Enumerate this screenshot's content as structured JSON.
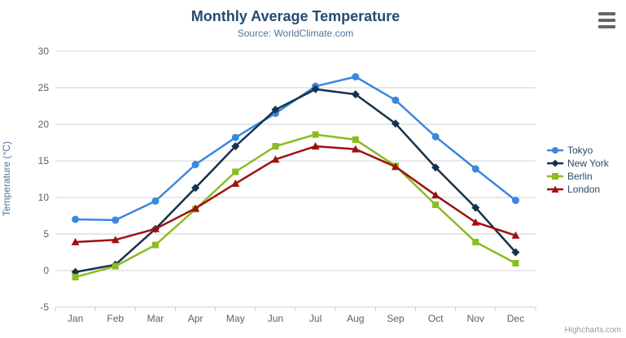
{
  "header": {
    "title": "Monthly Average Temperature",
    "subtitle": "Source: WorldClimate.com"
  },
  "credits": "Highcharts.com",
  "menu_icon": "hamburger-menu",
  "colors": {
    "title": "#274b6d",
    "subtitle": "#4d759e",
    "axis_title": "#4d759e",
    "tick_label": "#606060",
    "grid_line": "#d0d0d0",
    "axis_line": "#c0d0e0",
    "legend_text": "#274b6d",
    "credits_text": "#999999",
    "menu_icon": "#666666"
  },
  "chart_data": {
    "type": "line",
    "title": "Monthly Average Temperature",
    "subtitle": "Source: WorldClimate.com",
    "categories": [
      "Jan",
      "Feb",
      "Mar",
      "Apr",
      "May",
      "Jun",
      "Jul",
      "Aug",
      "Sep",
      "Oct",
      "Nov",
      "Dec"
    ],
    "xlabel": "",
    "ylabel": "Temperature (°C)",
    "ylim": [
      -5,
      30
    ],
    "y_ticks": [
      -5,
      0,
      5,
      10,
      15,
      20,
      25,
      30
    ],
    "grid": true,
    "legend_position": "right",
    "series": [
      {
        "name": "Tokyo",
        "color": "#3a87e0",
        "marker": "circle",
        "values": [
          7.0,
          6.9,
          9.5,
          14.5,
          18.2,
          21.5,
          25.2,
          26.5,
          23.3,
          18.3,
          13.9,
          9.6
        ]
      },
      {
        "name": "New York",
        "color": "#16324c",
        "marker": "diamond",
        "values": [
          -0.2,
          0.8,
          5.7,
          11.3,
          17.0,
          22.0,
          24.8,
          24.1,
          20.1,
          14.1,
          8.6,
          2.5
        ]
      },
      {
        "name": "Berlin",
        "color": "#8bbc21",
        "marker": "square",
        "values": [
          -0.9,
          0.6,
          3.5,
          8.4,
          13.5,
          17.0,
          18.6,
          17.9,
          14.3,
          9.0,
          3.9,
          1.0
        ]
      },
      {
        "name": "London",
        "color": "#a01010",
        "marker": "triangle",
        "values": [
          3.9,
          4.2,
          5.7,
          8.5,
          11.9,
          15.2,
          17.0,
          16.6,
          14.2,
          10.3,
          6.6,
          4.8
        ]
      }
    ]
  }
}
